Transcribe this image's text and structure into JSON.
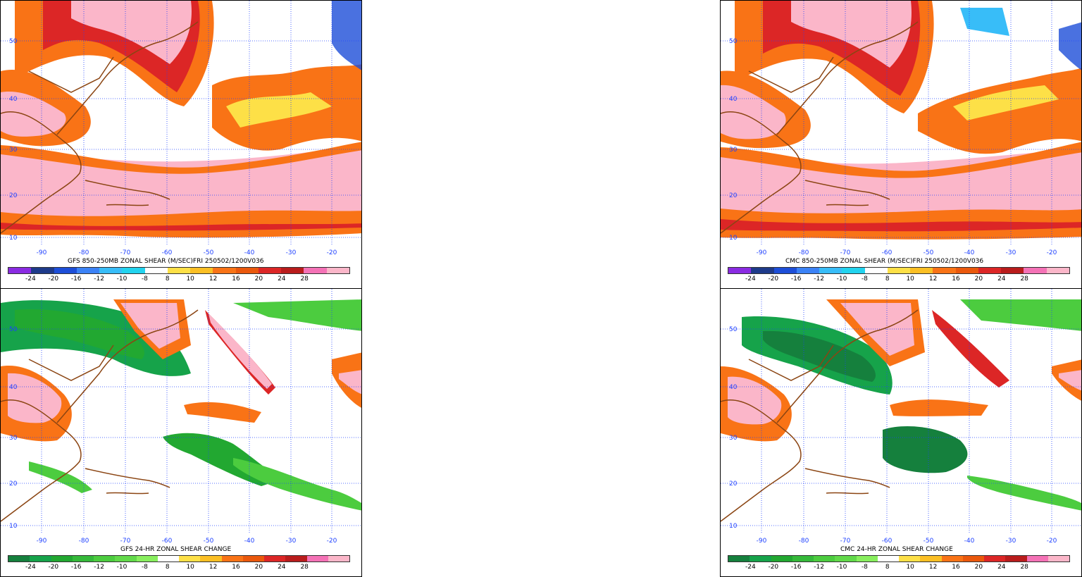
{
  "panels": [
    {
      "id": "gfs-shear",
      "caption": "GFS 850-250MB ZONAL SHEAR (M/SEC)FRI 250502/1200V036",
      "colorbar": "shear"
    },
    {
      "id": "cmc-shear",
      "caption": "CMC 850-250MB ZONAL SHEAR (M/SEC)FRI 250502/1200V036",
      "colorbar": "shear"
    },
    {
      "id": "gfs-change",
      "caption": "GFS 24-HR ZONAL SHEAR CHANGE",
      "colorbar": "change"
    },
    {
      "id": "cmc-change",
      "caption": "CMC 24-HR ZONAL SHEAR CHANGE",
      "colorbar": "change"
    }
  ],
  "lat_labels": [
    "50",
    "40",
    "30",
    "20",
    "10"
  ],
  "lon_labels": [
    "-90",
    "-80",
    "-70",
    "-60",
    "-50",
    "-40",
    "-30",
    "-20"
  ],
  "colorbar_labels": [
    "-24",
    "-20",
    "-16",
    "-12",
    "-10",
    "-8",
    "8",
    "10",
    "12",
    "16",
    "20",
    "24",
    "28"
  ],
  "colorbars": {
    "shear": [
      "#8a2be2",
      "#1e3a8a",
      "#1d4ed8",
      "#3b82f6",
      "#38bdf8",
      "#22d3ee",
      "#ffffff",
      "#fde047",
      "#fbbf24",
      "#f97316",
      "#ea580c",
      "#dc2626",
      "#b91c1c",
      "#f472b6",
      "#fbb6c9"
    ],
    "change": [
      "#15803d",
      "#16a34a",
      "#22a831",
      "#35b93a",
      "#4ccc3f",
      "#62d94a",
      "#88ee5e",
      "#ffffff",
      "#fde047",
      "#fbbf24",
      "#f97316",
      "#ea580c",
      "#dc2626",
      "#b91c1c",
      "#f472b6",
      "#fbb6c9"
    ]
  },
  "colors": {
    "grid": "#1e40ff",
    "coast": "#8b4513",
    "label": "#1e40ff"
  }
}
